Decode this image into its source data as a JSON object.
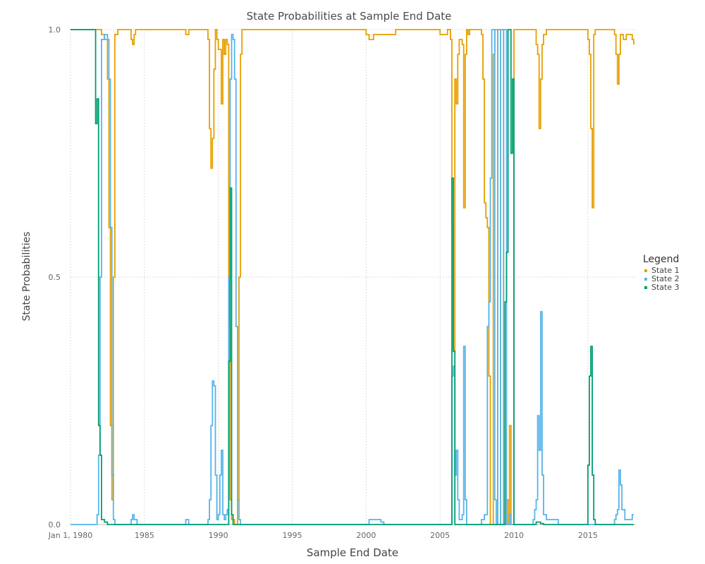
{
  "chart_data": {
    "type": "line",
    "title": "State Probabilities at Sample End Date",
    "xlabel": "Sample End Date",
    "ylabel": "State Probabilities",
    "xlim": [
      1980.0,
      2018.25
    ],
    "ylim": [
      0,
      1
    ],
    "x_ticks": [
      {
        "value": 1980,
        "label": "Jan 1, 1980"
      },
      {
        "value": 1985,
        "label": "1985"
      },
      {
        "value": 1990,
        "label": "1990"
      },
      {
        "value": 1995,
        "label": "1995"
      },
      {
        "value": 2000,
        "label": "2000"
      },
      {
        "value": 2005,
        "label": "2005"
      },
      {
        "value": 2010,
        "label": "2010"
      },
      {
        "value": 2015,
        "label": "2015"
      }
    ],
    "y_ticks": [
      {
        "value": 0,
        "label": "0.0"
      },
      {
        "value": 0.5,
        "label": "0.5"
      },
      {
        "value": 1,
        "label": "1.0"
      }
    ],
    "grid": true,
    "legend": {
      "title": "Legend",
      "position": "right"
    },
    "series": [
      {
        "name": "State 1",
        "color": "#E69F00",
        "x": [
          1980.0,
          1981.5,
          1981.9,
          1982.1,
          1982.3,
          1982.5,
          1982.6,
          1982.7,
          1982.8,
          1982.9,
          1983.0,
          1983.2,
          1984.0,
          1984.1,
          1984.2,
          1984.3,
          1984.4,
          1985.0,
          1987.5,
          1987.8,
          1988.0,
          1989.0,
          1989.3,
          1989.4,
          1989.5,
          1989.6,
          1989.7,
          1989.8,
          1989.9,
          1990.0,
          1990.2,
          1990.3,
          1990.4,
          1990.5,
          1990.6,
          1990.7,
          1990.8,
          1990.9,
          1991.0,
          1991.1,
          1991.2,
          1991.3,
          1991.4,
          1991.5,
          1991.6,
          1991.8,
          1992.0,
          1999.9,
          2000.0,
          2000.2,
          2000.5,
          2001.0,
          2002.0,
          2004.5,
          2005.0,
          2005.5,
          2005.7,
          2005.8,
          2005.9,
          2006.0,
          2006.1,
          2006.2,
          2006.3,
          2006.5,
          2006.6,
          2006.7,
          2006.8,
          2006.9,
          2007.0,
          2007.5,
          2007.8,
          2007.9,
          2008.0,
          2008.1,
          2008.2,
          2008.3,
          2008.4,
          2008.5,
          2008.6,
          2008.7,
          2008.8,
          2008.9,
          2009.0,
          2009.1,
          2009.2,
          2009.3,
          2009.4,
          2009.5,
          2009.6,
          2009.7,
          2009.8,
          2009.9,
          2010.0,
          2010.1,
          2011.0,
          2011.3,
          2011.5,
          2011.6,
          2011.7,
          2011.8,
          2011.9,
          2012.0,
          2012.2,
          2013.0,
          2014.0,
          2014.8,
          2015.0,
          2015.1,
          2015.2,
          2015.3,
          2015.4,
          2015.5,
          2015.6,
          2016.0,
          2016.5,
          2016.8,
          2016.9,
          2017.0,
          2017.1,
          2017.2,
          2017.4,
          2017.6,
          2018.0,
          2018.1
        ],
        "values": [
          1.0,
          1.0,
          1.0,
          0.99,
          0.98,
          0.9,
          0.6,
          0.2,
          0.05,
          0.5,
          0.99,
          1.0,
          1.0,
          0.98,
          0.97,
          0.99,
          1.0,
          1.0,
          1.0,
          0.99,
          1.0,
          1.0,
          0.98,
          0.8,
          0.72,
          0.78,
          0.92,
          1.0,
          0.98,
          0.96,
          0.85,
          0.98,
          0.95,
          0.98,
          0.97,
          0.4,
          0.05,
          0.01,
          0.01,
          0.0,
          0.0,
          0.05,
          0.5,
          0.95,
          1.0,
          1.0,
          1.0,
          1.0,
          0.99,
          0.98,
          0.99,
          0.99,
          1.0,
          1.0,
          0.99,
          1.0,
          0.98,
          0.6,
          0.35,
          0.9,
          0.85,
          0.95,
          0.98,
          0.97,
          0.64,
          0.95,
          1.0,
          0.99,
          1.0,
          1.0,
          0.99,
          0.9,
          0.65,
          0.62,
          0.6,
          0.3,
          0.0,
          0.0,
          0.95,
          1.0,
          1.0,
          0.0,
          0.0,
          1.0,
          1.0,
          0.0,
          0.0,
          0.05,
          0.0,
          0.2,
          0.0,
          0.0,
          1.0,
          1.0,
          1.0,
          1.0,
          0.97,
          0.95,
          0.8,
          0.9,
          0.97,
          0.99,
          1.0,
          1.0,
          1.0,
          1.0,
          0.98,
          0.95,
          0.8,
          0.64,
          0.99,
          1.0,
          1.0,
          1.0,
          1.0,
          0.99,
          0.95,
          0.89,
          0.95,
          0.99,
          0.98,
          0.99,
          0.98,
          0.97
        ]
      },
      {
        "name": "State 2",
        "color": "#56B4E9",
        "x": [
          1980.0,
          1981.6,
          1981.8,
          1981.9,
          1982.0,
          1982.1,
          1982.3,
          1982.5,
          1982.6,
          1982.7,
          1982.8,
          1982.9,
          1983.0,
          1983.2,
          1984.0,
          1984.1,
          1984.2,
          1984.3,
          1984.5,
          1985.0,
          1987.6,
          1987.8,
          1988.0,
          1989.0,
          1989.3,
          1989.4,
          1989.5,
          1989.6,
          1989.7,
          1989.8,
          1989.9,
          1990.0,
          1990.1,
          1990.2,
          1990.3,
          1990.4,
          1990.5,
          1990.6,
          1990.7,
          1990.8,
          1990.9,
          1991.0,
          1991.1,
          1991.2,
          1991.3,
          1991.4,
          1991.5,
          1991.6,
          1991.8,
          1992.0,
          2000.0,
          2000.2,
          2000.5,
          2001.0,
          2001.2,
          2002.0,
          2004.5,
          2005.0,
          2005.5,
          2005.7,
          2005.8,
          2005.9,
          2006.0,
          2006.1,
          2006.2,
          2006.3,
          2006.5,
          2006.6,
          2006.7,
          2006.8,
          2007.0,
          2007.5,
          2007.8,
          2008.0,
          2008.2,
          2008.3,
          2008.4,
          2008.5,
          2008.6,
          2008.7,
          2008.8,
          2008.9,
          2009.0,
          2009.1,
          2009.2,
          2009.3,
          2009.4,
          2009.5,
          2009.6,
          2009.7,
          2009.8,
          2010.0,
          2011.0,
          2011.3,
          2011.4,
          2011.5,
          2011.6,
          2011.7,
          2011.8,
          2011.9,
          2012.0,
          2012.2,
          2013.0,
          2015.0,
          2016.5,
          2016.8,
          2016.9,
          2017.0,
          2017.1,
          2017.2,
          2017.3,
          2017.5,
          2017.7,
          2018.0,
          2018.1
        ],
        "values": [
          0.0,
          0.0,
          0.02,
          0.14,
          0.5,
          0.98,
          0.99,
          0.98,
          0.9,
          0.6,
          0.1,
          0.01,
          0.0,
          0.0,
          0.0,
          0.01,
          0.02,
          0.01,
          0.0,
          0.0,
          0.0,
          0.01,
          0.0,
          0.0,
          0.01,
          0.05,
          0.2,
          0.29,
          0.28,
          0.1,
          0.01,
          0.02,
          0.1,
          0.15,
          0.02,
          0.01,
          0.02,
          0.03,
          0.5,
          0.9,
          0.99,
          0.98,
          0.9,
          0.4,
          0.05,
          0.01,
          0.0,
          0.0,
          0.0,
          0.0,
          0.0,
          0.01,
          0.01,
          0.005,
          0.0,
          0.0,
          0.0,
          0.0,
          0.0,
          0.0,
          0.3,
          0.32,
          0.1,
          0.15,
          0.05,
          0.01,
          0.02,
          0.36,
          0.05,
          0.0,
          0.0,
          0.0,
          0.01,
          0.02,
          0.4,
          0.45,
          0.7,
          1.0,
          1.0,
          0.05,
          0.0,
          1.0,
          1.0,
          0.0,
          0.0,
          1.0,
          1.0,
          0.0,
          0.0,
          0.02,
          0.0,
          0.0,
          0.0,
          0.01,
          0.03,
          0.05,
          0.22,
          0.15,
          0.43,
          0.1,
          0.02,
          0.01,
          0.0,
          0.0,
          0.0,
          0.01,
          0.02,
          0.03,
          0.11,
          0.08,
          0.03,
          0.01,
          0.01,
          0.02,
          0.02
        ]
      },
      {
        "name": "State 3",
        "color": "#009E73",
        "x": [
          1980.0,
          1981.6,
          1981.7,
          1981.8,
          1981.9,
          1982.0,
          1982.1,
          1982.3,
          1982.5,
          1983.0,
          1988.0,
          1990.6,
          1990.7,
          1990.8,
          1990.9,
          1991.0,
          1991.5,
          2005.7,
          2005.8,
          2005.9,
          2006.0,
          2006.2,
          2008.5,
          2008.6,
          2008.8,
          2009.0,
          2009.2,
          2009.3,
          2009.4,
          2009.5,
          2009.6,
          2009.7,
          2009.8,
          2009.9,
          2010.0,
          2010.1,
          2011.0,
          2011.5,
          2011.8,
          2012.0,
          2014.8,
          2015.0,
          2015.1,
          2015.2,
          2015.3,
          2015.4,
          2015.5,
          2016.0,
          2018.1
        ],
        "values": [
          1.0,
          1.0,
          0.81,
          0.86,
          0.2,
          0.14,
          0.01,
          0.005,
          0.0,
          0.0,
          0.0,
          0.0,
          0.33,
          0.68,
          0.02,
          0.0,
          0.0,
          0.0,
          0.7,
          0.35,
          0.0,
          0.0,
          0.0,
          0.0,
          0.0,
          0.0,
          0.0,
          0.0,
          0.45,
          0.55,
          1.0,
          1.0,
          0.75,
          0.9,
          0.0,
          0.0,
          0.0,
          0.005,
          0.002,
          0.0,
          0.0,
          0.12,
          0.3,
          0.36,
          0.1,
          0.01,
          0.0,
          0.0,
          0.0
        ]
      }
    ]
  }
}
